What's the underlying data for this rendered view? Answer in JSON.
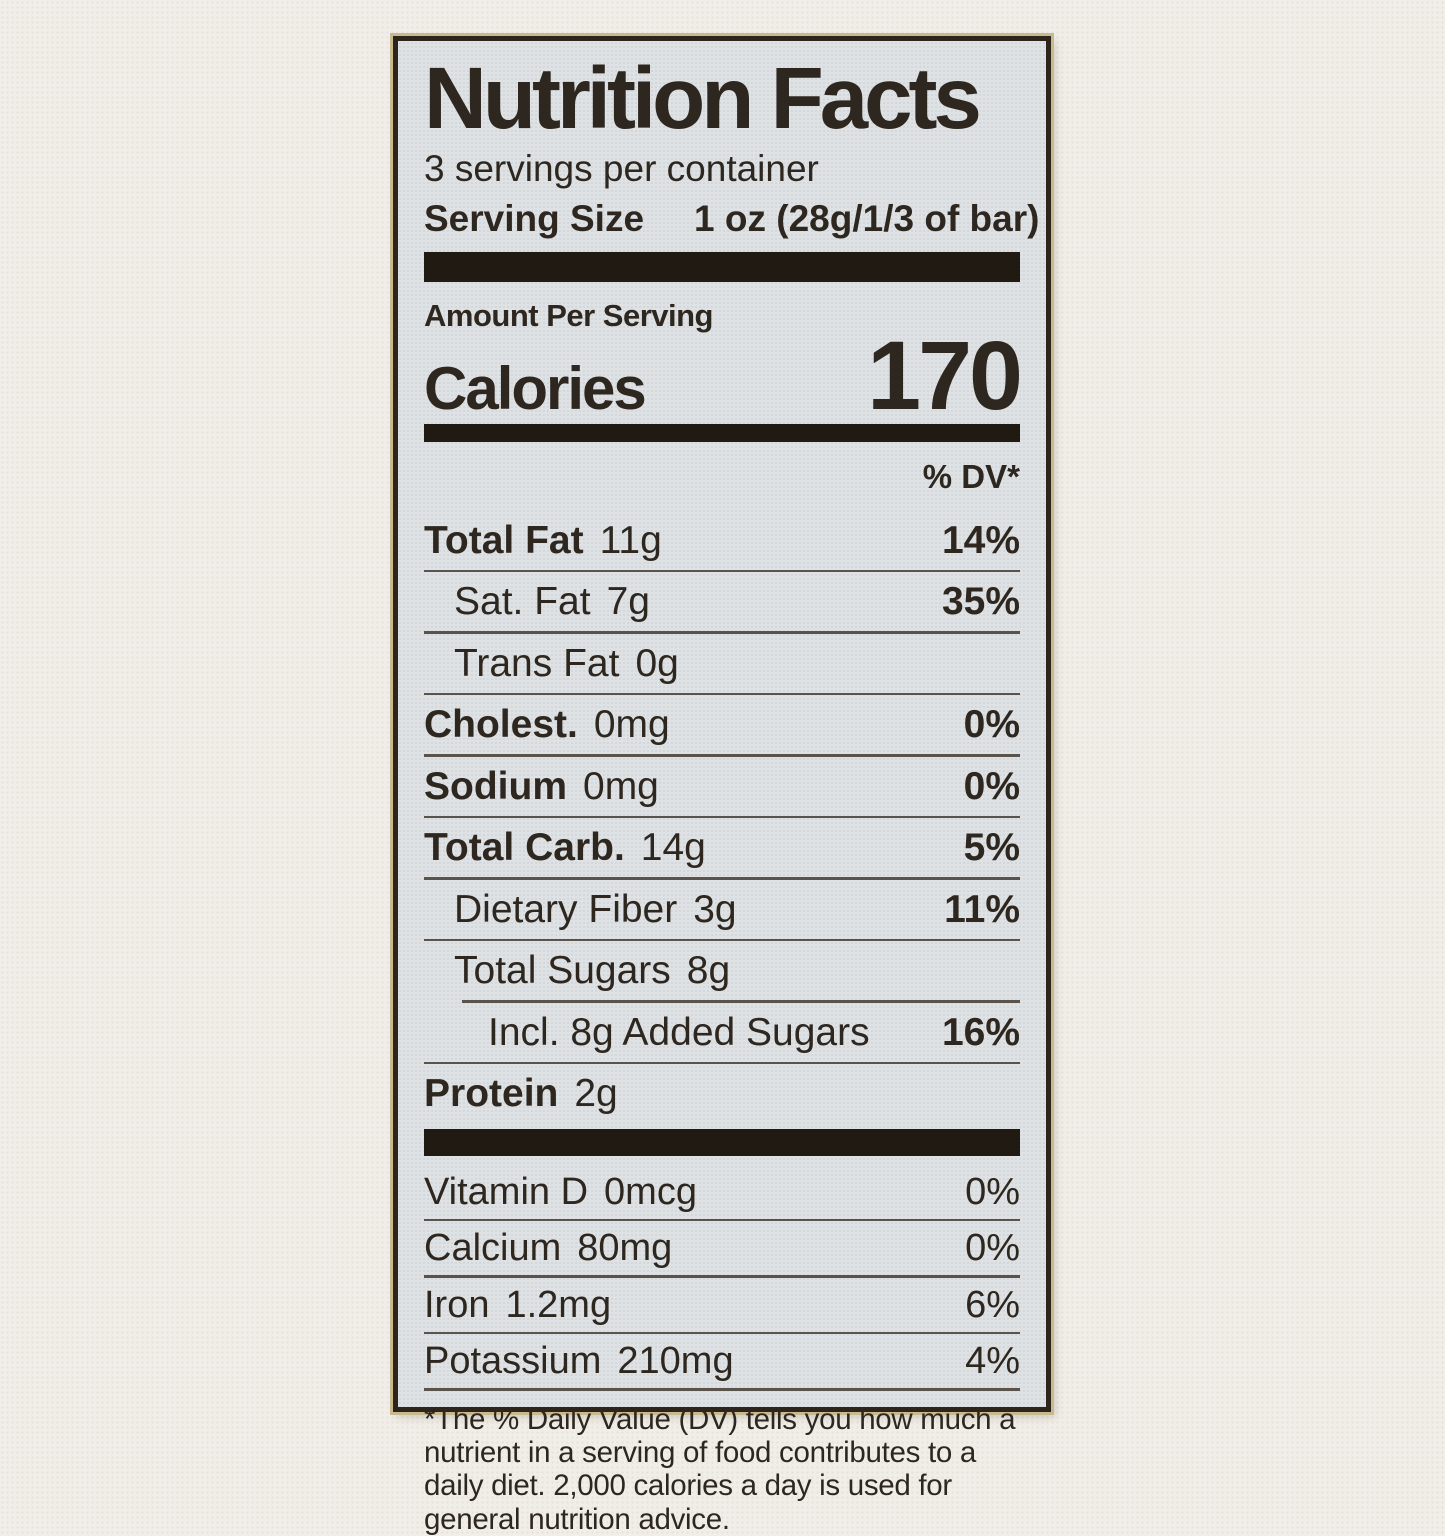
{
  "label": {
    "title": "Nutrition Facts",
    "servings_per_container": "3 servings per container",
    "serving_size_label": "Serving Size",
    "serving_size_value": "1 oz (28g/1/3 of bar)",
    "amount_per_serving": "Amount Per Serving",
    "calories_label": "Calories",
    "calories_value": "170",
    "dv_header": "% DV*",
    "nutrients": [
      {
        "name": "Total Fat",
        "amount": "11g",
        "dv": "14%",
        "name_bold": true,
        "dv_bold": true,
        "indent": 0,
        "rule": "none"
      },
      {
        "name": "Sat. Fat",
        "amount": "7g",
        "dv": "35%",
        "name_bold": false,
        "dv_bold": true,
        "indent": 1,
        "rule": "full"
      },
      {
        "name": "Trans Fat",
        "amount": "0g",
        "dv": "",
        "name_bold": false,
        "dv_bold": false,
        "indent": 1,
        "rule": "full"
      },
      {
        "name": "Cholest.",
        "amount": "0mg",
        "dv": "0%",
        "name_bold": true,
        "dv_bold": true,
        "indent": 0,
        "rule": "full"
      },
      {
        "name": "Sodium",
        "amount": "0mg",
        "dv": "0%",
        "name_bold": true,
        "dv_bold": true,
        "indent": 0,
        "rule": "full"
      },
      {
        "name": "Total Carb.",
        "amount": "14g",
        "dv": "5%",
        "name_bold": true,
        "dv_bold": true,
        "indent": 0,
        "rule": "full"
      },
      {
        "name": "Dietary Fiber",
        "amount": "3g",
        "dv": "11%",
        "name_bold": false,
        "dv_bold": true,
        "indent": 1,
        "rule": "full"
      },
      {
        "name": "Total Sugars",
        "amount": "8g",
        "dv": "",
        "name_bold": false,
        "dv_bold": false,
        "indent": 1,
        "rule": "full"
      },
      {
        "name": "Incl. 8g Added Sugars",
        "amount": "",
        "dv": "16%",
        "name_bold": false,
        "dv_bold": true,
        "indent": 2,
        "rule": "indent",
        "rule_indent": 38
      },
      {
        "name": "Protein",
        "amount": "2g",
        "dv": "",
        "name_bold": true,
        "dv_bold": false,
        "indent": 0,
        "rule": "full"
      }
    ],
    "vitamins": [
      {
        "name": "Vitamin D",
        "amount": "0mcg",
        "dv": "0%",
        "rule": "none"
      },
      {
        "name": "Calcium",
        "amount": "80mg",
        "dv": "0%",
        "rule": "full"
      },
      {
        "name": "Iron",
        "amount": "1.2mg",
        "dv": "6%",
        "rule": "full"
      },
      {
        "name": "Potassium",
        "amount": "210mg",
        "dv": "4%",
        "rule": "full"
      }
    ],
    "footnote": "*The % Daily Value (DV) tells you how much a nutrient in a serving of food contributes to a daily diet. 2,000 calories a day is used for general nutrition advice."
  },
  "colors": {
    "ink": "#2e2720",
    "label_background": "#dfe2e4",
    "page_background": "#f1eee9",
    "divider": "#59534b",
    "heavy_bar": "#211a12",
    "border": "#2d251b"
  }
}
